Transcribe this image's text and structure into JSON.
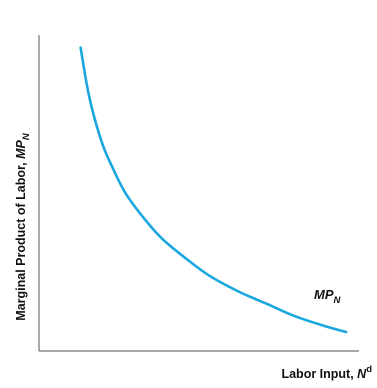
{
  "chart_data": {
    "type": "line",
    "title": "",
    "xlabel": {
      "main": "Labor Input, ",
      "var": "N",
      "sup": "d"
    },
    "ylabel": {
      "main": "Marginal Product of Labor, ",
      "var": "MP",
      "sub": "N"
    },
    "xlim": [
      0,
      10
    ],
    "ylim": [
      0,
      10
    ],
    "ticks": false,
    "grid": false,
    "legend": "none",
    "series": [
      {
        "name": {
          "main": "MP",
          "sub": "N"
        },
        "color": "#1aa7e0",
        "x": [
          1.3,
          1.5,
          1.7,
          2.0,
          2.3,
          2.7,
          3.2,
          3.8,
          4.5,
          5.3,
          6.2,
          7.1,
          8.0,
          8.9,
          9.6
        ],
        "y": [
          9.6,
          8.4,
          7.5,
          6.5,
          5.8,
          5.0,
          4.3,
          3.6,
          3.0,
          2.4,
          1.9,
          1.5,
          1.1,
          0.8,
          0.6
        ]
      }
    ]
  }
}
